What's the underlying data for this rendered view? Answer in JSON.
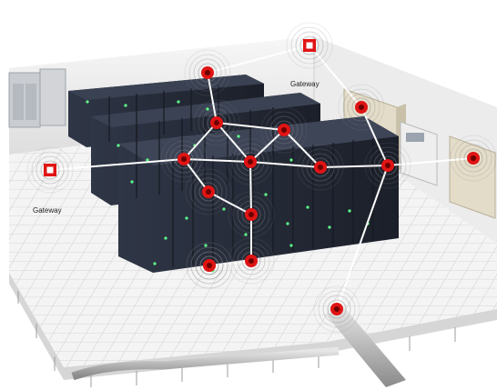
{
  "labels": {
    "gateway_top": "Gateway",
    "gateway_left": "Gateway"
  },
  "nodes": [
    {
      "id": "gateway-left",
      "kind": "gateway"
    },
    {
      "id": "gateway-top",
      "kind": "gateway"
    },
    {
      "id": "node-1",
      "kind": "sensor"
    },
    {
      "id": "node-2",
      "kind": "sensor"
    },
    {
      "id": "node-3",
      "kind": "sensor"
    },
    {
      "id": "node-4",
      "kind": "sensor"
    },
    {
      "id": "node-5",
      "kind": "sensor"
    },
    {
      "id": "node-6",
      "kind": "sensor"
    },
    {
      "id": "node-7",
      "kind": "sensor"
    },
    {
      "id": "node-8",
      "kind": "sensor"
    },
    {
      "id": "node-9",
      "kind": "sensor"
    },
    {
      "id": "node-10",
      "kind": "sensor"
    },
    {
      "id": "node-11",
      "kind": "sensor"
    },
    {
      "id": "node-12",
      "kind": "sensor"
    },
    {
      "id": "node-13",
      "kind": "sensor"
    },
    {
      "id": "node-14",
      "kind": "sensor"
    }
  ],
  "links": [
    {
      "from": "node-13",
      "to": "node-12"
    },
    {
      "from": "node-12",
      "to": "node-11"
    },
    {
      "from": "node-11",
      "to": "node-9"
    },
    {
      "from": "node-9",
      "to": "node-5"
    },
    {
      "from": "node-9",
      "to": "node-6"
    },
    {
      "from": "node-5",
      "to": "node-2"
    },
    {
      "from": "node-5",
      "to": "gateway-left"
    },
    {
      "from": "node-2",
      "to": "node-1"
    },
    {
      "from": "node-1",
      "to": "gateway-top"
    },
    {
      "from": "node-6",
      "to": "node-3"
    },
    {
      "from": "node-6",
      "to": "node-2"
    },
    {
      "from": "node-6",
      "to": "node-4"
    },
    {
      "from": "node-4",
      "to": "node-3"
    },
    {
      "from": "node-4",
      "to": "node-7"
    },
    {
      "from": "node-7",
      "to": "node-10"
    },
    {
      "from": "node-8",
      "to": "node-10"
    },
    {
      "from": "node-8",
      "to": "gateway-top"
    },
    {
      "from": "node-14",
      "to": "node-10"
    },
    {
      "from": "node-10",
      "to": "node-15"
    },
    {
      "from": "node-15",
      "to": "node-14"
    }
  ],
  "colors": {
    "node_red": "#e01414",
    "link_white": "#ffffff",
    "rack_dark": "#1f2430",
    "rack_face": "#2b3140",
    "led_green": "#5dff8a",
    "floor_tile": "#f2f2f2",
    "wall": "#e9e9e9"
  }
}
